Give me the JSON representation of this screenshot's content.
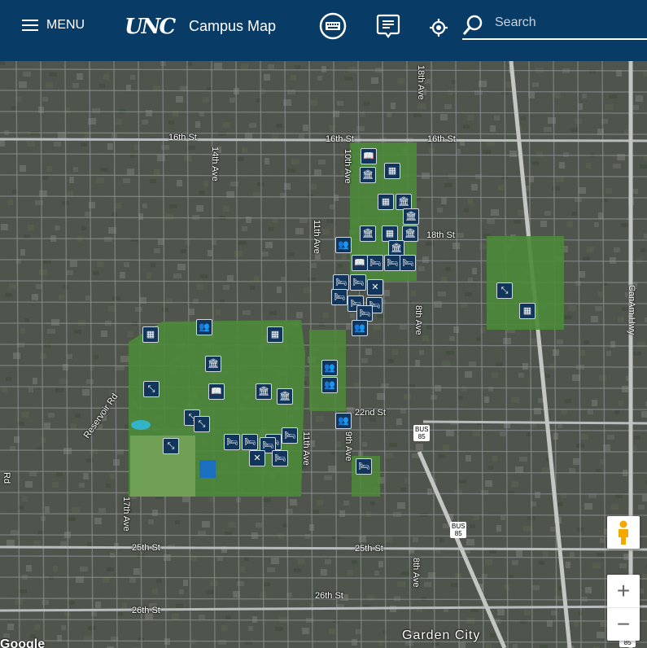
{
  "header": {
    "menu_label": "MENU",
    "logo": "UNC",
    "title": "Campus Map",
    "search_placeholder": "Search",
    "icons": [
      "hamburger-icon",
      "keyboard-icon",
      "feedback-icon",
      "locate-icon",
      "search-icon"
    ]
  },
  "map": {
    "attribution": "Google",
    "area_label": "Garden City",
    "street_labels": [
      "16th St",
      "16th St",
      "16th St",
      "14th Ave",
      "11th Ave",
      "10th Ave",
      "18th Ave",
      "18th St",
      "8th Ave",
      "Reservoir Rd",
      "22nd St",
      "17th Ave",
      "25th St",
      "25th St",
      "26th St",
      "26th St",
      "8th Ave",
      "CanAm Hwy",
      "9th Ave",
      "11th Ave",
      "Rd"
    ],
    "highway_shields": [
      "85",
      "85",
      "85"
    ],
    "shield_top": "BUS",
    "marker_types": [
      "building",
      "museum",
      "people",
      "bed",
      "sports",
      "dining",
      "book",
      "parking"
    ],
    "accent": "#083c66",
    "marker_color": "#12355b"
  },
  "controls": {
    "pegman": "street-view-pegman",
    "zoom_in": "+",
    "zoom_out": "−"
  }
}
